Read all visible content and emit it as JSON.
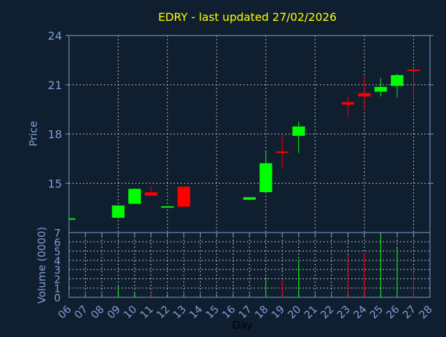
{
  "colors": {
    "background": "#0f1f30",
    "axis": "#7f9fcf",
    "grid": "#c0c0c0",
    "title": "#ffff00",
    "up": "#00ff00",
    "down": "#ff0000",
    "label": "#7f9fcf"
  },
  "chart_data": {
    "type": "candlestick",
    "title": "EDRY - last updated 27/02/2026",
    "xlabel": "Day",
    "ylabel": "Price",
    "volume_label": "Volume (0000)",
    "ylim": [
      12,
      24
    ],
    "volume_ylim": [
      0,
      7
    ],
    "yticks": [
      "24",
      "21",
      "18",
      "15"
    ],
    "yticks_values": [
      24,
      21,
      18,
      15
    ],
    "volume_ticks": [
      "7",
      "6",
      "5",
      "4",
      "3",
      "2",
      "1",
      "0"
    ],
    "x_ticks": [
      "06",
      "07",
      "08",
      "09",
      "10",
      "11",
      "12",
      "13",
      "14",
      "15",
      "16",
      "17",
      "18",
      "19",
      "20",
      "21",
      "22",
      "23",
      "24",
      "25",
      "26",
      "27",
      "28"
    ],
    "grid": true,
    "candles": [
      {
        "day": "06",
        "open": 12.83,
        "high": 12.87,
        "low": 12.83,
        "close": 12.87,
        "volume": 0.0
      },
      {
        "day": "09",
        "open": 12.9,
        "high": 13.65,
        "low": 12.86,
        "close": 13.65,
        "volume": 1.3
      },
      {
        "day": "10",
        "open": 13.75,
        "high": 14.7,
        "low": 13.75,
        "close": 14.66,
        "volume": 0.5
      },
      {
        "day": "11",
        "open": 14.45,
        "high": 14.82,
        "low": 14.25,
        "close": 14.25,
        "volume": 0.35
      },
      {
        "day": "12",
        "open": 13.53,
        "high": 13.6,
        "low": 13.53,
        "close": 13.6,
        "volume": 0.05
      },
      {
        "day": "13",
        "open": 14.79,
        "high": 14.79,
        "low": 13.58,
        "close": 13.58,
        "volume": 0.05
      },
      {
        "day": "17",
        "open": 14.0,
        "high": 14.15,
        "low": 14.0,
        "close": 14.15,
        "volume": 0.05
      },
      {
        "day": "18",
        "open": 14.46,
        "high": 16.9,
        "low": 14.42,
        "close": 16.22,
        "volume": 2.2
      },
      {
        "day": "19",
        "open": 16.94,
        "high": 17.94,
        "low": 15.9,
        "close": 16.85,
        "volume": 1.9
      },
      {
        "day": "20",
        "open": 17.89,
        "high": 18.76,
        "low": 16.85,
        "close": 18.46,
        "volume": 4.0
      },
      {
        "day": "23",
        "open": 19.94,
        "high": 20.27,
        "low": 19.03,
        "close": 19.79,
        "volume": 4.6
      },
      {
        "day": "24",
        "open": 20.49,
        "high": 21.5,
        "low": 19.42,
        "close": 20.29,
        "volume": 4.8
      },
      {
        "day": "25",
        "open": 20.58,
        "high": 21.42,
        "low": 20.29,
        "close": 20.87,
        "volume": 6.7
      },
      {
        "day": "26",
        "open": 20.93,
        "high": 21.67,
        "low": 20.22,
        "close": 21.59,
        "volume": 5.5
      },
      {
        "day": "27",
        "open": 21.93,
        "high": 21.93,
        "low": 20.12,
        "close": 21.86,
        "volume": 2.75
      }
    ]
  }
}
